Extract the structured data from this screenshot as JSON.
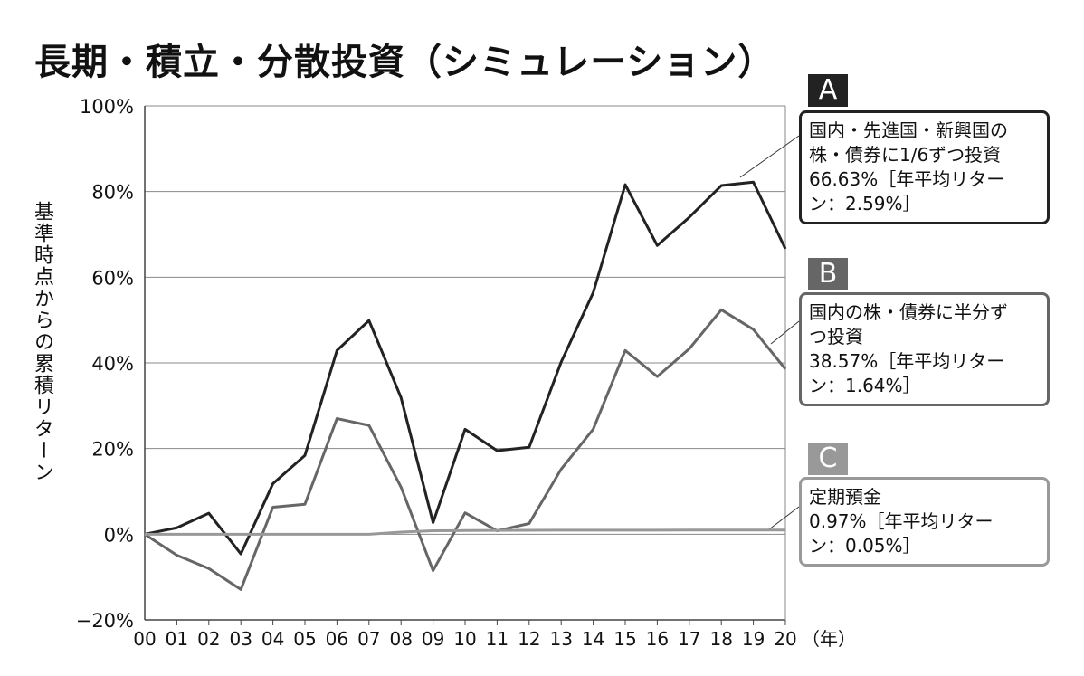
{
  "chart_data": {
    "type": "line",
    "title": "長期・積立・分散投資（シミュレーション）",
    "ylabel": "基準時点からの累積リターン",
    "xlabel": "（年）",
    "categories": [
      "00",
      "01",
      "02",
      "03",
      "04",
      "05",
      "06",
      "07",
      "08",
      "09",
      "10",
      "11",
      "12",
      "13",
      "14",
      "15",
      "16",
      "17",
      "18",
      "19",
      "20"
    ],
    "ylim": [
      -20,
      100
    ],
    "yticks": [
      "−20%",
      "0%",
      "20%",
      "40%",
      "60%",
      "80%",
      "100%"
    ],
    "ytick_values": [
      -20,
      0,
      20,
      40,
      60,
      80,
      100
    ],
    "grid": true,
    "series": [
      {
        "name": "A",
        "color": "#222222",
        "values": [
          0,
          1.5,
          4.9,
          -4.6,
          11.8,
          18.4,
          42.9,
          49.9,
          31.9,
          2.7,
          24.5,
          19.5,
          20.3,
          40.2,
          56.4,
          81.6,
          67.4,
          74,
          81.4,
          82.2,
          66.63
        ],
        "tag_color": "#222222",
        "legend": [
          "国内・先進国・新興国の",
          "株・債券に1/6ずつ投資",
          "66.63%［年平均リター",
          "ン：2.59%］"
        ]
      },
      {
        "name": "B",
        "color": "#666666",
        "values": [
          0,
          -4.9,
          -8,
          -12.9,
          6.3,
          7,
          27,
          25.4,
          11,
          -8.5,
          5,
          0.8,
          2.5,
          15.2,
          24.5,
          42.9,
          36.8,
          43.3,
          52.4,
          47.8,
          38.57
        ],
        "tag_color": "#666666",
        "legend": [
          "国内の株・債券に半分ず",
          "つ投資",
          "38.57%［年平均リター",
          "ン：1.64%］"
        ]
      },
      {
        "name": "C",
        "color": "#999999",
        "values": [
          0,
          0,
          0,
          0,
          0,
          0,
          0,
          0,
          0.5,
          0.8,
          0.85,
          0.9,
          0.92,
          0.93,
          0.94,
          0.95,
          0.95,
          0.96,
          0.96,
          0.97,
          0.97
        ],
        "tag_color": "#999999",
        "legend": [
          "定期預金",
          "0.97%［年平均リター",
          "ン：0.05%］"
        ]
      }
    ]
  }
}
